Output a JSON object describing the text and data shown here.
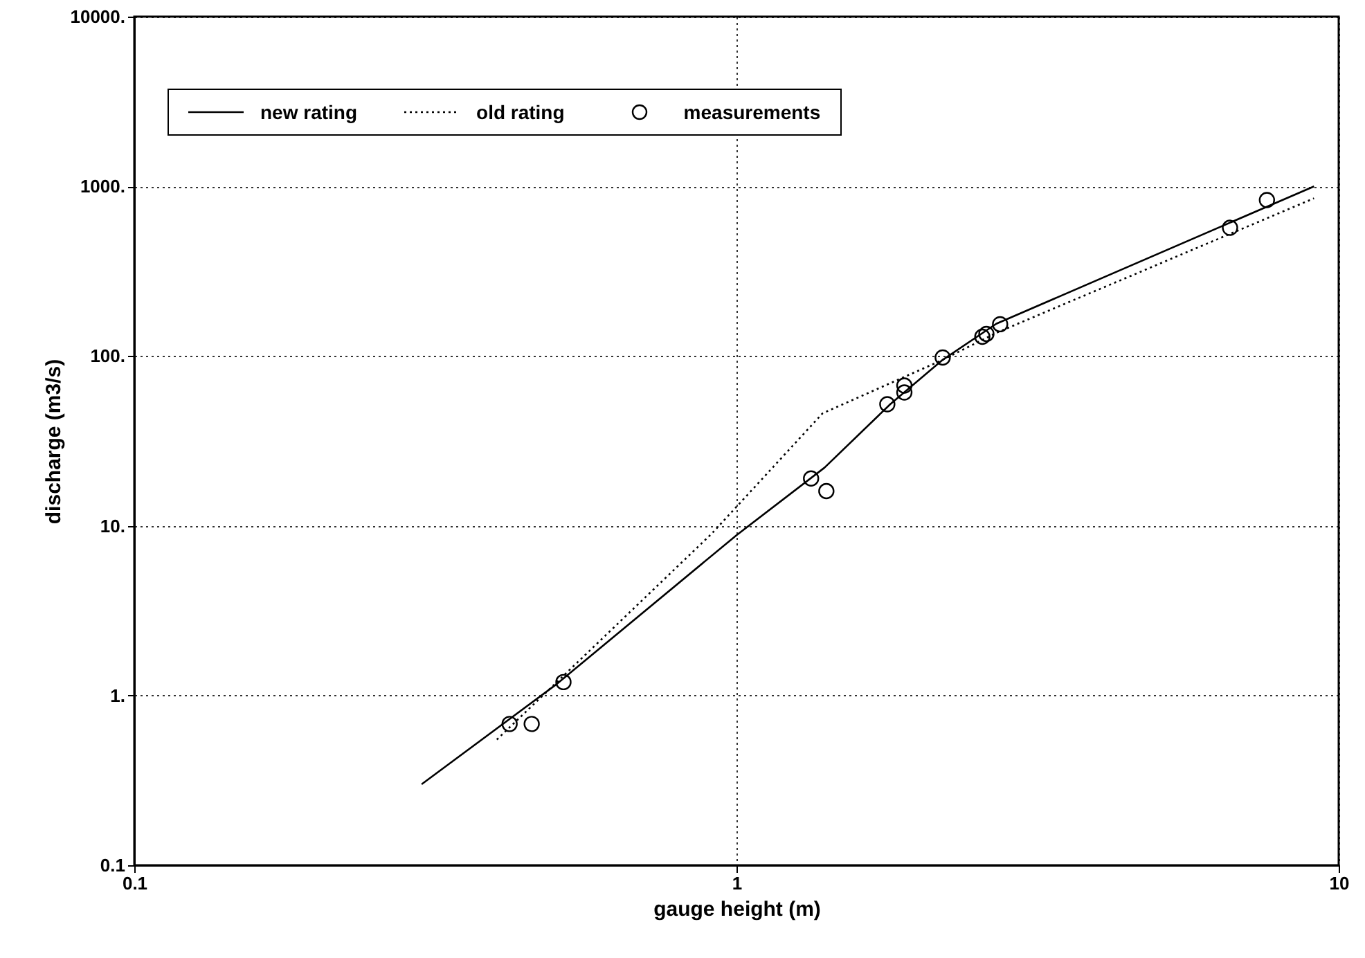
{
  "chart_data": {
    "type": "line",
    "xlabel": "gauge height  (m)",
    "ylabel": "discharge  (m3/s)",
    "log": "xy",
    "grid": true,
    "legend": "top left",
    "xlim": [
      0.1,
      10
    ],
    "xticks": [
      0.1,
      1,
      10
    ],
    "ylim": [
      0.1,
      10000
    ],
    "yticks": [
      0.1,
      {
        "value": 1,
        "label": "1."
      },
      {
        "value": 10,
        "label": "10."
      },
      {
        "value": 100,
        "label": "100."
      },
      {
        "value": 1000,
        "label": "1000."
      },
      {
        "value": 10000,
        "label": "10000."
      }
    ],
    "series": [
      {
        "name": "new rating",
        "line_style": "solid",
        "color": "#000000",
        "x": [
          0.3,
          0.5,
          1,
          1.4,
          1.8,
          2.2,
          2.7,
          9.1
        ],
        "values": [
          0.3,
          1.15,
          8.8,
          22,
          52,
          95,
          155,
          1000
        ]
      },
      {
        "name": "old rating",
        "line_style": "dotted",
        "color": "#000000",
        "x": [
          0.4,
          0.91,
          1.39,
          2.2,
          2.7,
          9.1
        ],
        "values": [
          0.55,
          9,
          46,
          95,
          137,
          850
        ]
      },
      {
        "name": "measurements",
        "type": "scatter",
        "marker": "circle",
        "color": "#000000",
        "x": [
          0.42,
          0.457,
          0.516,
          1.33,
          1.41,
          1.78,
          1.9,
          1.9,
          2.2,
          2.56,
          2.6,
          2.74,
          6.6,
          7.6
        ],
        "values": [
          0.68,
          0.68,
          1.2,
          19,
          16,
          52,
          61,
          67,
          98,
          130,
          135,
          154,
          570,
          830
        ]
      }
    ]
  }
}
